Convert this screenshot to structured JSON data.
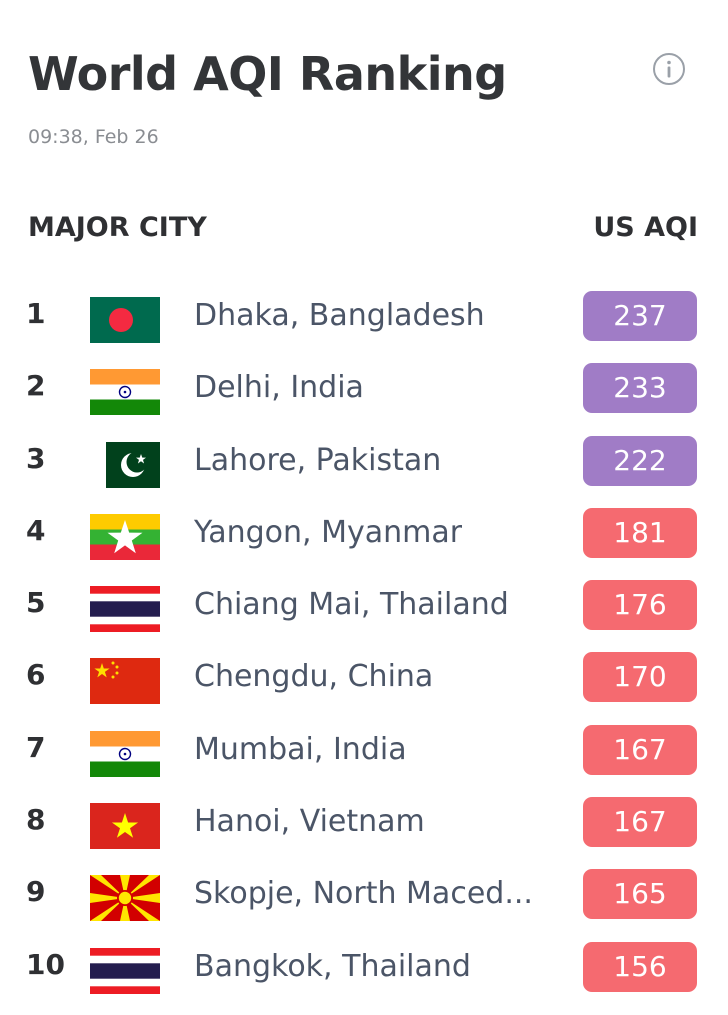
{
  "header": {
    "title": "World AQI Ranking",
    "timestamp": "09:38, Feb 26",
    "info_icon": "info-circle-icon"
  },
  "table": {
    "col_city": "MAJOR CITY",
    "col_aqi": "US AQI",
    "rows": [
      {
        "rank": "1",
        "city": "Dhaka, Bangladesh",
        "flag": "bangladesh-flag-icon",
        "aqi": "237",
        "color": "#a07cc6"
      },
      {
        "rank": "2",
        "city": "Delhi, India",
        "flag": "india-flag-icon",
        "aqi": "233",
        "color": "#a07cc6"
      },
      {
        "rank": "3",
        "city": "Lahore, Pakistan",
        "flag": "pakistan-flag-icon",
        "aqi": "222",
        "color": "#a07cc6"
      },
      {
        "rank": "4",
        "city": "Yangon, Myanmar",
        "flag": "myanmar-flag-icon",
        "aqi": "181",
        "color": "#f56a70"
      },
      {
        "rank": "5",
        "city": "Chiang Mai, Thailand",
        "flag": "thailand-flag-icon",
        "aqi": "176",
        "color": "#f56a70"
      },
      {
        "rank": "6",
        "city": "Chengdu, China",
        "flag": "china-flag-icon",
        "aqi": "170",
        "color": "#f56a70"
      },
      {
        "rank": "7",
        "city": "Mumbai, India",
        "flag": "india-flag-icon",
        "aqi": "167",
        "color": "#f56a70"
      },
      {
        "rank": "8",
        "city": "Hanoi, Vietnam",
        "flag": "vietnam-flag-icon",
        "aqi": "167",
        "color": "#f56a70"
      },
      {
        "rank": "9",
        "city": "Skopje, North Maced...",
        "flag": "north-macedonia-flag-icon",
        "aqi": "165",
        "color": "#f56a70"
      },
      {
        "rank": "10",
        "city": "Bangkok, Thailand",
        "flag": "thailand-flag-icon",
        "aqi": "156",
        "color": "#f56a70"
      }
    ]
  }
}
